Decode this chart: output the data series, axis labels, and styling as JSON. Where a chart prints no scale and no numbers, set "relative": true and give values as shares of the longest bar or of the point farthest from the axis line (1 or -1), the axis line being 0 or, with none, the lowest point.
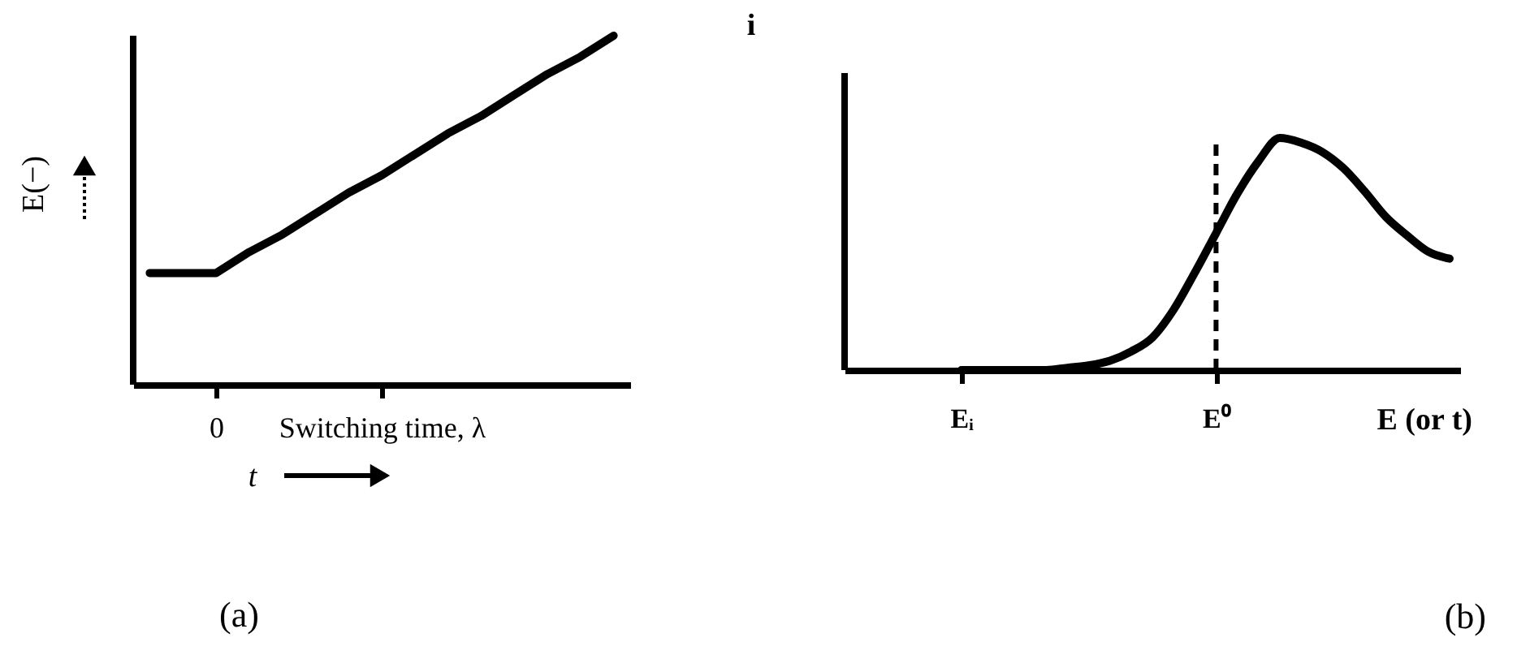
{
  "chart_data": [
    {
      "type": "line",
      "title": "(a)",
      "xlabel": "t",
      "ylabel": "E(−)",
      "categories": [
        null,
        null,
        "0",
        null,
        null,
        null,
        null,
        "Switching time, λ",
        null,
        null,
        null,
        null,
        null,
        null,
        null
      ],
      "relative": true,
      "series": [
        {
          "color": "#000000",
          "values": [
            0.32,
            0.32,
            0.32,
            0.38,
            0.43,
            0.49,
            0.55,
            0.6,
            0.66,
            0.72,
            0.77,
            0.83,
            0.89,
            0.94,
            1
          ]
        }
      ]
    },
    {
      "type": "line",
      "title": "(b)",
      "xlabel": "E (or t)",
      "ylabel": "i",
      "categories": [
        null,
        null,
        null,
        null,
        null,
        "Eᵢ",
        null,
        null,
        null,
        null,
        null,
        null,
        null,
        null,
        null,
        null,
        null,
        "E⁰",
        null,
        null,
        null,
        null,
        null,
        null,
        null,
        null,
        null,
        null,
        null
      ],
      "relative": true,
      "series": [
        {
          "color": "#000000",
          "values": [
            null,
            null,
            null,
            null,
            null,
            0,
            0,
            0,
            0,
            0,
            0.01,
            0.02,
            0.04,
            0.08,
            0.14,
            0.26,
            0.42,
            0.59,
            0.76,
            0.9,
            1,
            0.98,
            0.94,
            0.87,
            0.77,
            0.66,
            0.58,
            0.51,
            0.48
          ]
        }
      ],
      "ref_lines": [
        {
          "axis": "x",
          "value": "E⁰",
          "line_style": "dashed",
          "color": "#000000"
        }
      ]
    }
  ]
}
